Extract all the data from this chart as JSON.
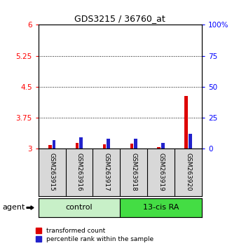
{
  "title": "GDS3215 / 36760_at",
  "samples": [
    "GSM263915",
    "GSM263916",
    "GSM263917",
    "GSM263918",
    "GSM263919",
    "GSM263920"
  ],
  "transformed_counts": [
    3.1,
    3.14,
    3.11,
    3.12,
    3.04,
    4.28
  ],
  "percentile_ranks": [
    7,
    9,
    8,
    8,
    5,
    12
  ],
  "ylim_left": [
    3.0,
    6.0
  ],
  "ylim_right": [
    0,
    100
  ],
  "yticks_left": [
    3.0,
    3.75,
    4.5,
    5.25,
    6.0
  ],
  "ytick_labels_left": [
    "3",
    "3.75",
    "4.5",
    "5.25",
    "6"
  ],
  "yticks_right": [
    0,
    25,
    50,
    75,
    100
  ],
  "ytick_labels_right": [
    "0",
    "25",
    "50",
    "75",
    "100%"
  ],
  "hlines": [
    3.75,
    4.5,
    5.25
  ],
  "red_color": "#DD0000",
  "blue_color": "#2222CC",
  "legend_red": "transformed count",
  "legend_blue": "percentile rank within the sample",
  "agent_label": "agent",
  "bar_area_color": "#d8d8d8",
  "control_color": "#c8f0c8",
  "ra_color": "#44dd44",
  "bar_width": 0.12
}
